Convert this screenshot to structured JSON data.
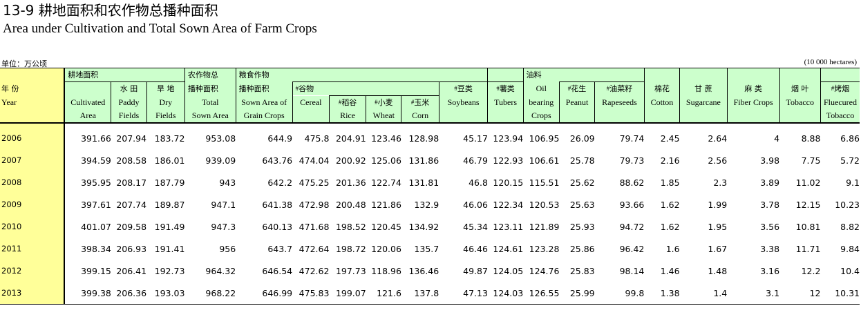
{
  "title_cn": "13-9  耕地面积和农作物总播种面积",
  "title_en": "Area under Cultivation and Total Sown Area of Farm Crops",
  "unit_left": "单位：万公顷",
  "unit_right": "(10 000 hectares)",
  "headers": {
    "year_cn": "年 份",
    "year_en": "Year",
    "cultivated_group_cn": "耕地面积",
    "cultivated_en1": "Cultivated",
    "cultivated_en2": "Area",
    "paddy_cn": "水 田",
    "paddy_en1": "Paddy",
    "paddy_en2": "Fields",
    "dry_cn": "旱 地",
    "dry_en1": "Dry",
    "dry_en2": "Fields",
    "total_sown_cn1": "农作物总",
    "total_sown_cn2": "播种面积",
    "total_sown_en1": "Total",
    "total_sown_en2": "Sown Area",
    "grain_cn1": "粮食作物",
    "grain_cn2": "播种面积",
    "grain_en1": "Sown Area of",
    "grain_en2": "Grain Crops",
    "cereal_cn": "谷物",
    "cereal_en": "Cereal",
    "rice_cn": "稻谷",
    "rice_en": "Rice",
    "wheat_cn": "小麦",
    "wheat_en": "Wheat",
    "corn_cn": "玉米",
    "corn_en": "Corn",
    "soy_cn": "豆类",
    "soy_en": "Soybeans",
    "tubers_cn": "薯类",
    "tubers_en": "Tubers",
    "oil_cn": "油料",
    "oil_en1": "Oil",
    "oil_en2": "bearing",
    "oil_en3": "Crops",
    "peanut_cn": "花生",
    "peanut_en": "Peanut",
    "rapeseed_cn": "油菜籽",
    "rapeseed_en": "Rapeseeds",
    "cotton_cn": "棉花",
    "cotton_en": "Cotton",
    "sugarcane_cn": "甘  蔗",
    "sugarcane_en": "Sugarcane",
    "fiber_cn": "麻  类",
    "fiber_en": "Fiber Crops",
    "tobacco_cn": "烟  叶",
    "tobacco_en": "Tobacco",
    "flue_cn": "烤烟",
    "flue_en1": "Fluecured",
    "flue_en2": "Tobacco",
    "mark": "#"
  },
  "rows": [
    {
      "year": "2006",
      "v": [
        "391.66",
        "207.94",
        "183.72",
        "953.08",
        "644.9",
        "475.8",
        "204.91",
        "123.46",
        "128.98",
        "45.17",
        "123.94",
        "106.95",
        "26.09",
        "79.74",
        "2.45",
        "2.64",
        "4",
        "8.88",
        "6.86"
      ]
    },
    {
      "year": "2007",
      "v": [
        "394.59",
        "208.58",
        "186.01",
        "939.09",
        "643.76",
        "474.04",
        "200.92",
        "125.06",
        "131.86",
        "46.79",
        "122.93",
        "106.61",
        "25.78",
        "79.73",
        "2.16",
        "2.56",
        "3.98",
        "7.75",
        "5.72"
      ]
    },
    {
      "year": "2008",
      "v": [
        "395.95",
        "208.17",
        "187.79",
        "943",
        "642.2",
        "475.25",
        "201.36",
        "122.74",
        "131.81",
        "46.8",
        "120.15",
        "115.51",
        "25.62",
        "88.62",
        "1.85",
        "2.3",
        "3.89",
        "11.02",
        "9.1"
      ]
    },
    {
      "year": "2009",
      "v": [
        "397.61",
        "207.74",
        "189.87",
        "947.1",
        "641.38",
        "472.98",
        "200.48",
        "121.86",
        "132.9",
        "46.06",
        "122.34",
        "120.53",
        "25.63",
        "93.66",
        "1.62",
        "1.99",
        "3.78",
        "12.15",
        "10.23"
      ]
    },
    {
      "year": "2010",
      "v": [
        "401.07",
        "209.58",
        "191.49",
        "947.3",
        "640.13",
        "471.68",
        "198.52",
        "120.45",
        "134.92",
        "45.34",
        "123.11",
        "121.89",
        "25.93",
        "94.72",
        "1.62",
        "1.95",
        "3.56",
        "10.81",
        "8.82"
      ]
    },
    {
      "year": "2011",
      "v": [
        "398.34",
        "206.93",
        "191.41",
        "956",
        "643.7",
        "472.64",
        "198.72",
        "120.06",
        "135.7",
        "46.46",
        "124.61",
        "123.28",
        "25.86",
        "96.42",
        "1.6",
        "1.67",
        "3.38",
        "11.71",
        "9.84"
      ]
    },
    {
      "year": "2012",
      "v": [
        "399.15",
        "206.41",
        "192.73",
        "964.32",
        "646.54",
        "472.62",
        "197.73",
        "118.96",
        "136.46",
        "49.87",
        "124.05",
        "124.76",
        "25.83",
        "98.14",
        "1.46",
        "1.48",
        "3.16",
        "12.2",
        "10.4"
      ]
    },
    {
      "year": "2013",
      "v": [
        "399.38",
        "206.36",
        "193.03",
        "968.22",
        "646.99",
        "475.83",
        "199.07",
        "121.6",
        "137.8",
        "47.13",
        "124.03",
        "126.55",
        "25.99",
        "99.8",
        "1.38",
        "1.4",
        "3.1",
        "12",
        "10.31"
      ]
    }
  ]
}
